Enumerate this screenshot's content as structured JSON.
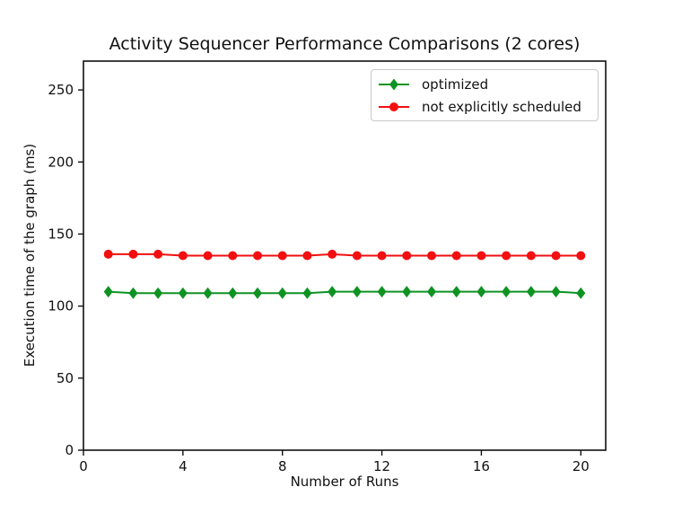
{
  "chart_data": {
    "type": "line",
    "title": "Activity Sequencer Performance Comparisons (2 cores)",
    "xlabel": "Number of Runs",
    "ylabel": "Execution time of the graph (ms)",
    "xlim": [
      0,
      21
    ],
    "ylim": [
      0,
      270
    ],
    "x_ticks": [
      0,
      4,
      8,
      12,
      16,
      20
    ],
    "y_ticks": [
      0,
      50,
      100,
      150,
      200,
      250
    ],
    "grid": false,
    "legend_position": "upper right",
    "x": [
      1,
      2,
      3,
      4,
      5,
      6,
      7,
      8,
      9,
      10,
      11,
      12,
      13,
      14,
      15,
      16,
      17,
      18,
      19,
      20
    ],
    "series": [
      {
        "name": "optimized",
        "color": "#0e9322",
        "marker": "diamond",
        "values": [
          110,
          109,
          109,
          109,
          109,
          109,
          109,
          109,
          109,
          110,
          110,
          110,
          110,
          110,
          110,
          110,
          110,
          110,
          110,
          109
        ]
      },
      {
        "name": "not explicitly scheduled",
        "color": "#f20f0f",
        "marker": "circle",
        "values": [
          136,
          136,
          136,
          135,
          135,
          135,
          135,
          135,
          135,
          136,
          135,
          135,
          135,
          135,
          135,
          135,
          135,
          135,
          135,
          135
        ]
      }
    ]
  },
  "colors": {
    "spine": "#111111",
    "text": "#111111",
    "legend_border": "#c8c8c8",
    "background": "#ffffff"
  }
}
